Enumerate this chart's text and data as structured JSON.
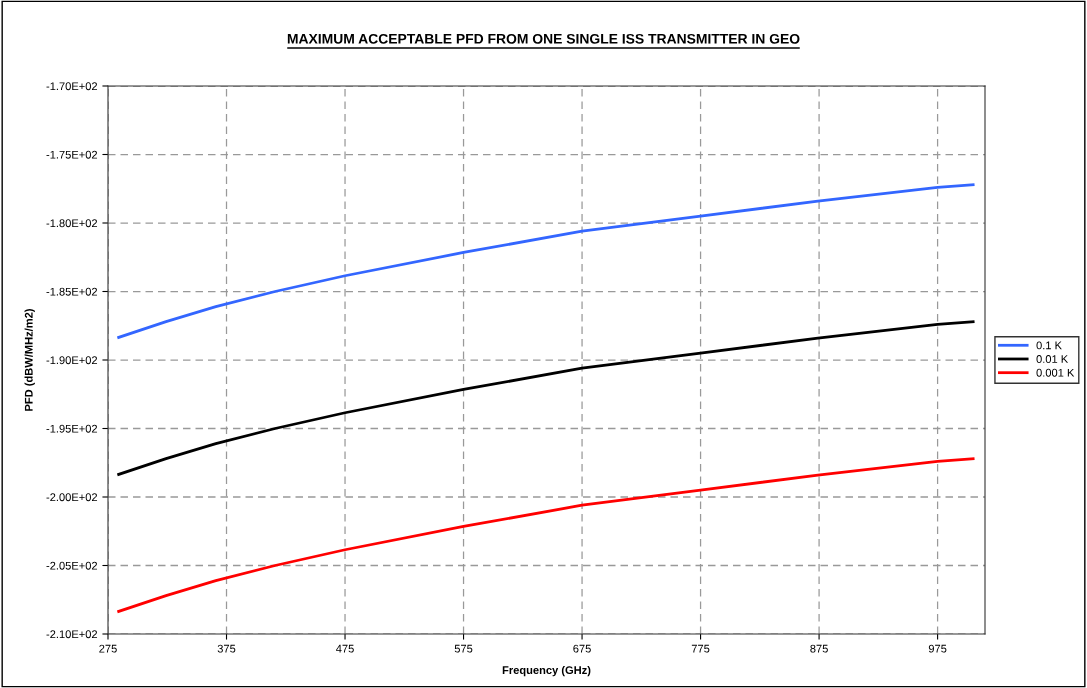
{
  "chart_data": {
    "type": "line",
    "title": "MAXIMUM ACCEPTABLE PFD FROM ONE SINGLE ISS TRANSMITTER IN GEO",
    "xlabel": "Frequency (GHz)",
    "ylabel": "PFD (dBW/MHz/m2)",
    "x": [
      284,
      324,
      366,
      416,
      475,
      575,
      675,
      775,
      874,
      975,
      1005
    ],
    "series": [
      {
        "name": "0.1 K",
        "color": "#3366ff",
        "values": [
          -188.35,
          -187.2,
          -186.1,
          -185.0,
          -183.85,
          -182.15,
          -180.6,
          -179.5,
          -178.4,
          -177.4,
          -177.2
        ]
      },
      {
        "name": "0.01 K",
        "color": "#000000",
        "values": [
          -198.35,
          -197.2,
          -196.1,
          -195.0,
          -193.85,
          -192.15,
          -190.6,
          -189.5,
          -188.4,
          -187.4,
          -187.2
        ]
      },
      {
        "name": "0.001 K",
        "color": "#ff0000",
        "values": [
          -208.35,
          -207.2,
          -206.1,
          -205.0,
          -203.85,
          -202.15,
          -200.6,
          -199.5,
          -198.4,
          -197.4,
          -197.2
        ]
      }
    ],
    "xlim": [
      275,
      1015
    ],
    "xticks": [
      275,
      375,
      475,
      575,
      675,
      775,
      875,
      975
    ],
    "ylim": [
      -210,
      -170
    ],
    "yticks": [
      {
        "value": -210,
        "label": "-2.10E+02"
      },
      {
        "value": -205,
        "label": "-2.05E+02"
      },
      {
        "value": -200,
        "label": "-2.00E+02"
      },
      {
        "value": -195,
        "label": "-1.95E+02"
      },
      {
        "value": -190,
        "label": "-1.90E+02"
      },
      {
        "value": -185,
        "label": "-1.85E+02"
      },
      {
        "value": -180,
        "label": "-1.80E+02"
      },
      {
        "value": -175,
        "label": "-1.75E+02"
      },
      {
        "value": -170,
        "label": "-1.70E+02"
      }
    ],
    "grid": true,
    "legend": "right",
    "marker": "none",
    "line_style": "solid"
  }
}
